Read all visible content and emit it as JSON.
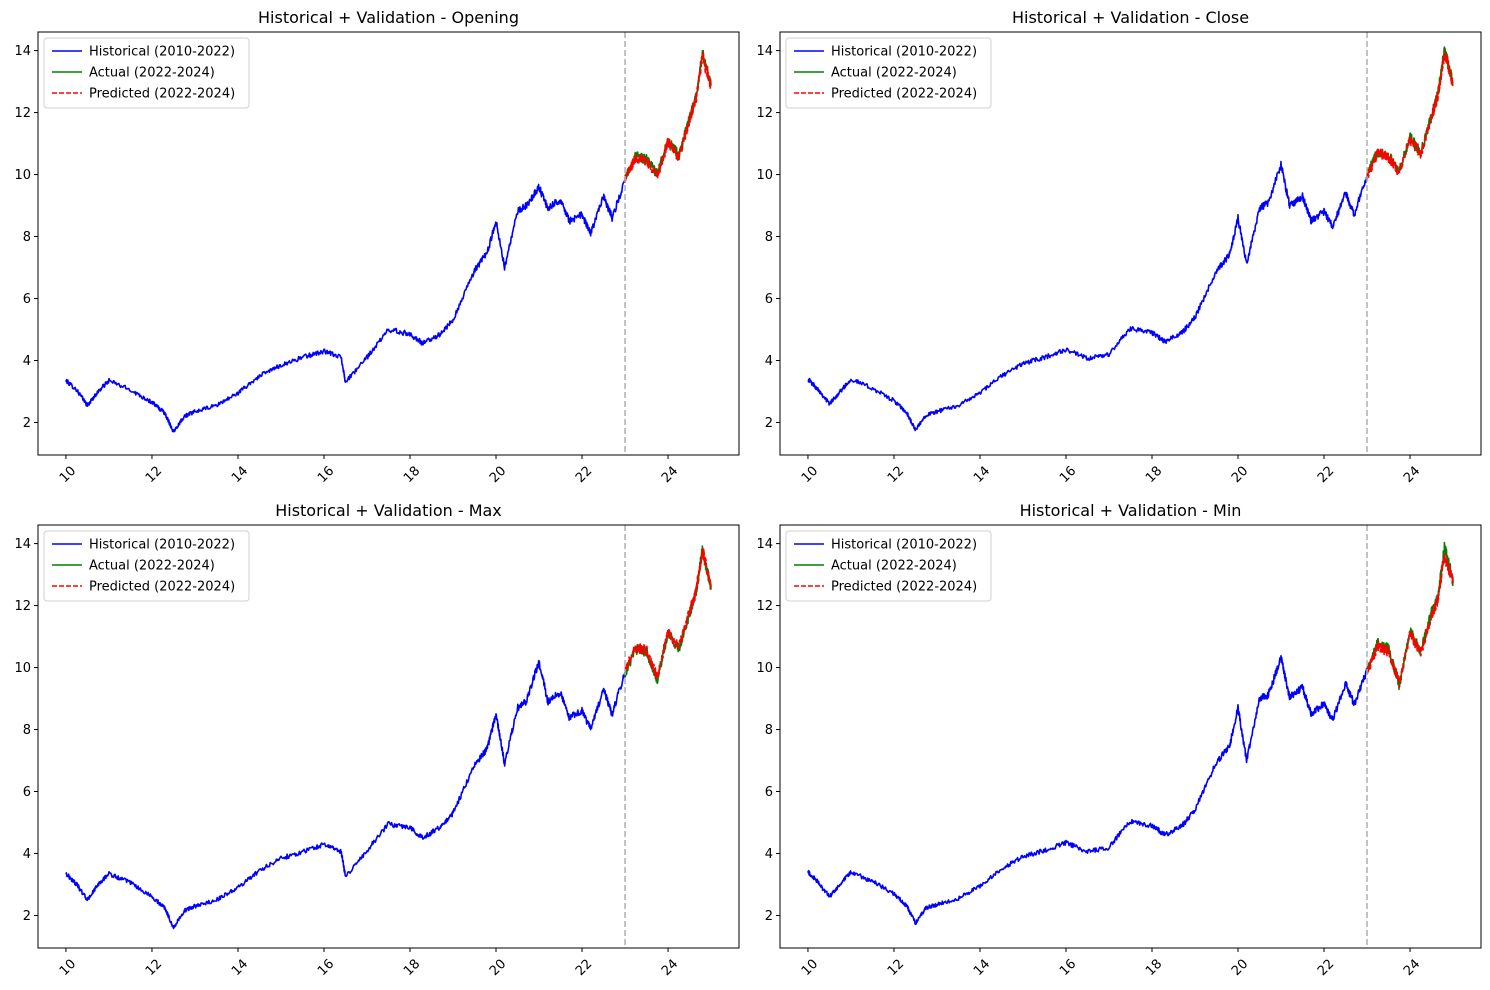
{
  "figure": {
    "background": "#ffffff"
  },
  "chart_data": [
    {
      "type": "line",
      "title": "Historical + Validation - Opening",
      "xlabel": "",
      "ylabel": "",
      "xlim": [
        9.35,
        25.65
      ],
      "ylim": [
        0.95,
        14.6
      ],
      "xticks": [
        10,
        12,
        14,
        16,
        18,
        20,
        22,
        24
      ],
      "xtick_labels": [
        "10",
        "12",
        "14",
        "16",
        "18",
        "20",
        "22",
        "24"
      ],
      "yticks": [
        2,
        4,
        6,
        8,
        10,
        12,
        14
      ],
      "ytick_labels": [
        "2",
        "4",
        "6",
        "8",
        "10",
        "12",
        "14"
      ],
      "grid": false,
      "legend_position": "top-left",
      "split_x": 23.0,
      "series": [
        {
          "name": "Historical (2010-2022)",
          "color": "#0000ff",
          "dash": "solid",
          "x": [
            10.0,
            10.25,
            10.5,
            10.75,
            11.0,
            11.5,
            12.0,
            12.3,
            12.5,
            12.75,
            13.0,
            13.5,
            14.0,
            14.5,
            15.0,
            15.5,
            16.0,
            16.4,
            16.5,
            17.0,
            17.5,
            18.0,
            18.3,
            18.7,
            19.0,
            19.5,
            19.8,
            20.0,
            20.2,
            20.5,
            20.7,
            21.0,
            21.2,
            21.5,
            21.7,
            22.0,
            22.2,
            22.5,
            22.7,
            23.0
          ],
          "values": [
            3.35,
            3.05,
            2.55,
            3.0,
            3.35,
            3.05,
            2.65,
            2.3,
            1.7,
            2.2,
            2.35,
            2.55,
            2.95,
            3.5,
            3.85,
            4.1,
            4.3,
            4.1,
            3.3,
            4.1,
            5.0,
            4.85,
            4.55,
            4.85,
            5.3,
            6.9,
            7.5,
            8.5,
            7.0,
            8.8,
            9.0,
            9.6,
            8.9,
            9.2,
            8.5,
            8.7,
            8.1,
            9.3,
            8.6,
            9.8
          ]
        },
        {
          "name": "Actual (2022-2024)",
          "color": "#008000",
          "dash": "solid",
          "x": [
            23.0,
            23.25,
            23.5,
            23.75,
            24.0,
            24.25,
            24.5,
            24.65,
            24.8,
            25.0
          ],
          "values": [
            9.9,
            10.6,
            10.5,
            10.0,
            11.1,
            10.6,
            11.8,
            12.5,
            13.9,
            12.9
          ]
        },
        {
          "name": "Predicted (2022-2024)",
          "color": "#ff0000",
          "dash": "dashed",
          "x": [
            23.0,
            23.25,
            23.5,
            23.75,
            24.0,
            24.25,
            24.5,
            24.65,
            24.8,
            25.0
          ],
          "values": [
            9.85,
            10.55,
            10.45,
            9.95,
            11.05,
            10.55,
            11.75,
            12.45,
            13.8,
            12.85
          ]
        }
      ]
    },
    {
      "type": "line",
      "title": "Historical + Validation - Close",
      "xlabel": "",
      "ylabel": "",
      "xlim": [
        9.35,
        25.65
      ],
      "ylim": [
        0.95,
        14.6
      ],
      "xticks": [
        10,
        12,
        14,
        16,
        18,
        20,
        22,
        24
      ],
      "xtick_labels": [
        "10",
        "12",
        "14",
        "16",
        "18",
        "20",
        "22",
        "24"
      ],
      "yticks": [
        2,
        4,
        6,
        8,
        10,
        12,
        14
      ],
      "ytick_labels": [
        "2",
        "4",
        "6",
        "8",
        "10",
        "12",
        "14"
      ],
      "grid": false,
      "legend_position": "top-left",
      "split_x": 23.0,
      "series": [
        {
          "name": "Historical (2010-2022)",
          "color": "#0000ff",
          "dash": "solid",
          "x": [
            10.0,
            10.25,
            10.5,
            10.75,
            11.0,
            11.5,
            12.0,
            12.3,
            12.5,
            12.75,
            13.0,
            13.5,
            14.0,
            14.5,
            15.0,
            15.5,
            16.0,
            16.5,
            17.0,
            17.5,
            18.0,
            18.3,
            18.7,
            19.0,
            19.5,
            19.8,
            20.0,
            20.2,
            20.5,
            20.7,
            21.0,
            21.2,
            21.5,
            21.7,
            22.0,
            22.2,
            22.5,
            22.7,
            23.0
          ],
          "values": [
            3.4,
            3.05,
            2.6,
            3.0,
            3.4,
            3.1,
            2.7,
            2.3,
            1.75,
            2.25,
            2.35,
            2.55,
            2.95,
            3.5,
            3.9,
            4.1,
            4.35,
            4.05,
            4.2,
            5.05,
            4.9,
            4.6,
            4.9,
            5.4,
            6.9,
            7.4,
            8.6,
            7.1,
            8.9,
            9.1,
            10.3,
            9.0,
            9.3,
            8.5,
            8.8,
            8.3,
            9.4,
            8.7,
            9.95
          ]
        },
        {
          "name": "Actual (2022-2024)",
          "color": "#008000",
          "dash": "solid",
          "x": [
            23.0,
            23.25,
            23.5,
            23.75,
            24.0,
            24.25,
            24.5,
            24.65,
            24.8,
            25.0
          ],
          "values": [
            10.0,
            10.75,
            10.6,
            10.1,
            11.2,
            10.7,
            11.9,
            12.6,
            14.0,
            13.0
          ]
        },
        {
          "name": "Predicted (2022-2024)",
          "color": "#ff0000",
          "dash": "dashed",
          "x": [
            23.0,
            23.25,
            23.5,
            23.75,
            24.0,
            24.25,
            24.5,
            24.65,
            24.8,
            25.0
          ],
          "values": [
            9.95,
            10.7,
            10.55,
            10.05,
            11.15,
            10.65,
            11.85,
            12.55,
            13.9,
            12.95
          ]
        }
      ]
    },
    {
      "type": "line",
      "title": "Historical + Validation - Max",
      "xlabel": "",
      "ylabel": "",
      "xlim": [
        9.35,
        25.65
      ],
      "ylim": [
        0.95,
        14.6
      ],
      "xticks": [
        10,
        12,
        14,
        16,
        18,
        20,
        22,
        24
      ],
      "xtick_labels": [
        "10",
        "12",
        "14",
        "16",
        "18",
        "20",
        "22",
        "24"
      ],
      "yticks": [
        2,
        4,
        6,
        8,
        10,
        12,
        14
      ],
      "ytick_labels": [
        "2",
        "4",
        "6",
        "8",
        "10",
        "12",
        "14"
      ],
      "grid": false,
      "legend_position": "top-left",
      "split_x": 23.0,
      "series": [
        {
          "name": "Historical (2010-2022)",
          "color": "#0000ff",
          "dash": "solid",
          "x": [
            10.0,
            10.25,
            10.5,
            10.75,
            11.0,
            11.5,
            12.0,
            12.3,
            12.5,
            12.75,
            13.0,
            13.5,
            14.0,
            14.5,
            15.0,
            15.5,
            16.0,
            16.4,
            16.5,
            17.0,
            17.5,
            18.0,
            18.3,
            18.7,
            19.0,
            19.5,
            19.8,
            20.0,
            20.2,
            20.5,
            20.7,
            21.0,
            21.2,
            21.5,
            21.7,
            22.0,
            22.2,
            22.5,
            22.7,
            23.0
          ],
          "values": [
            3.35,
            3.0,
            2.5,
            3.0,
            3.35,
            3.05,
            2.6,
            2.25,
            1.6,
            2.15,
            2.3,
            2.5,
            2.9,
            3.45,
            3.85,
            4.05,
            4.3,
            4.05,
            3.25,
            4.1,
            4.95,
            4.85,
            4.5,
            4.85,
            5.3,
            6.85,
            7.4,
            8.5,
            6.9,
            8.7,
            8.9,
            10.2,
            8.9,
            9.2,
            8.4,
            8.6,
            8.0,
            9.3,
            8.5,
            9.85
          ]
        },
        {
          "name": "Actual (2022-2024)",
          "color": "#008000",
          "dash": "solid",
          "x": [
            23.0,
            23.25,
            23.5,
            23.75,
            24.0,
            24.25,
            24.5,
            24.65,
            24.8,
            25.0
          ],
          "values": [
            9.8,
            10.6,
            10.5,
            9.6,
            11.1,
            10.6,
            11.75,
            12.4,
            13.8,
            12.6
          ]
        },
        {
          "name": "Predicted (2022-2024)",
          "color": "#ff0000",
          "dash": "dashed",
          "x": [
            23.0,
            23.25,
            23.5,
            23.75,
            24.0,
            24.25,
            24.5,
            24.65,
            24.8,
            25.0
          ],
          "values": [
            9.9,
            10.65,
            10.55,
            9.7,
            11.15,
            10.65,
            11.8,
            12.45,
            13.75,
            12.7
          ]
        }
      ]
    },
    {
      "type": "line",
      "title": "Historical + Validation - Min",
      "xlabel": "",
      "ylabel": "",
      "xlim": [
        9.35,
        25.65
      ],
      "ylim": [
        0.95,
        14.6
      ],
      "xticks": [
        10,
        12,
        14,
        16,
        18,
        20,
        22,
        24
      ],
      "xtick_labels": [
        "10",
        "12",
        "14",
        "16",
        "18",
        "20",
        "22",
        "24"
      ],
      "yticks": [
        2,
        4,
        6,
        8,
        10,
        12,
        14
      ],
      "ytick_labels": [
        "2",
        "4",
        "6",
        "8",
        "10",
        "12",
        "14"
      ],
      "grid": false,
      "legend_position": "top-left",
      "split_x": 23.0,
      "series": [
        {
          "name": "Historical (2010-2022)",
          "color": "#0000ff",
          "dash": "solid",
          "x": [
            10.0,
            10.25,
            10.5,
            10.75,
            11.0,
            11.5,
            12.0,
            12.3,
            12.5,
            12.75,
            13.0,
            13.5,
            14.0,
            14.5,
            15.0,
            15.5,
            16.0,
            16.5,
            17.0,
            17.5,
            18.0,
            18.3,
            18.7,
            19.0,
            19.5,
            19.8,
            20.0,
            20.2,
            20.5,
            20.7,
            21.0,
            21.2,
            21.5,
            21.7,
            22.0,
            22.2,
            22.5,
            22.7,
            23.0
          ],
          "values": [
            3.4,
            3.05,
            2.6,
            3.0,
            3.4,
            3.1,
            2.7,
            2.3,
            1.75,
            2.25,
            2.35,
            2.55,
            2.95,
            3.5,
            3.9,
            4.1,
            4.35,
            4.05,
            4.2,
            5.05,
            4.9,
            4.6,
            4.9,
            5.4,
            6.95,
            7.45,
            8.7,
            7.0,
            9.0,
            9.1,
            10.3,
            9.05,
            9.35,
            8.5,
            8.85,
            8.3,
            9.5,
            8.8,
            9.9
          ]
        },
        {
          "name": "Actual (2022-2024)",
          "color": "#008000",
          "dash": "solid",
          "x": [
            23.0,
            23.25,
            23.5,
            23.75,
            24.0,
            24.25,
            24.5,
            24.65,
            24.8,
            25.0
          ],
          "values": [
            9.9,
            10.8,
            10.6,
            9.4,
            11.2,
            10.5,
            11.8,
            12.3,
            13.9,
            12.8
          ]
        },
        {
          "name": "Predicted (2022-2024)",
          "color": "#ff0000",
          "dash": "dashed",
          "x": [
            23.0,
            23.25,
            23.5,
            23.75,
            24.0,
            24.25,
            24.5,
            24.65,
            24.8,
            25.0
          ],
          "values": [
            9.85,
            10.7,
            10.5,
            9.5,
            11.1,
            10.45,
            11.7,
            12.2,
            13.6,
            12.8
          ]
        }
      ]
    }
  ]
}
